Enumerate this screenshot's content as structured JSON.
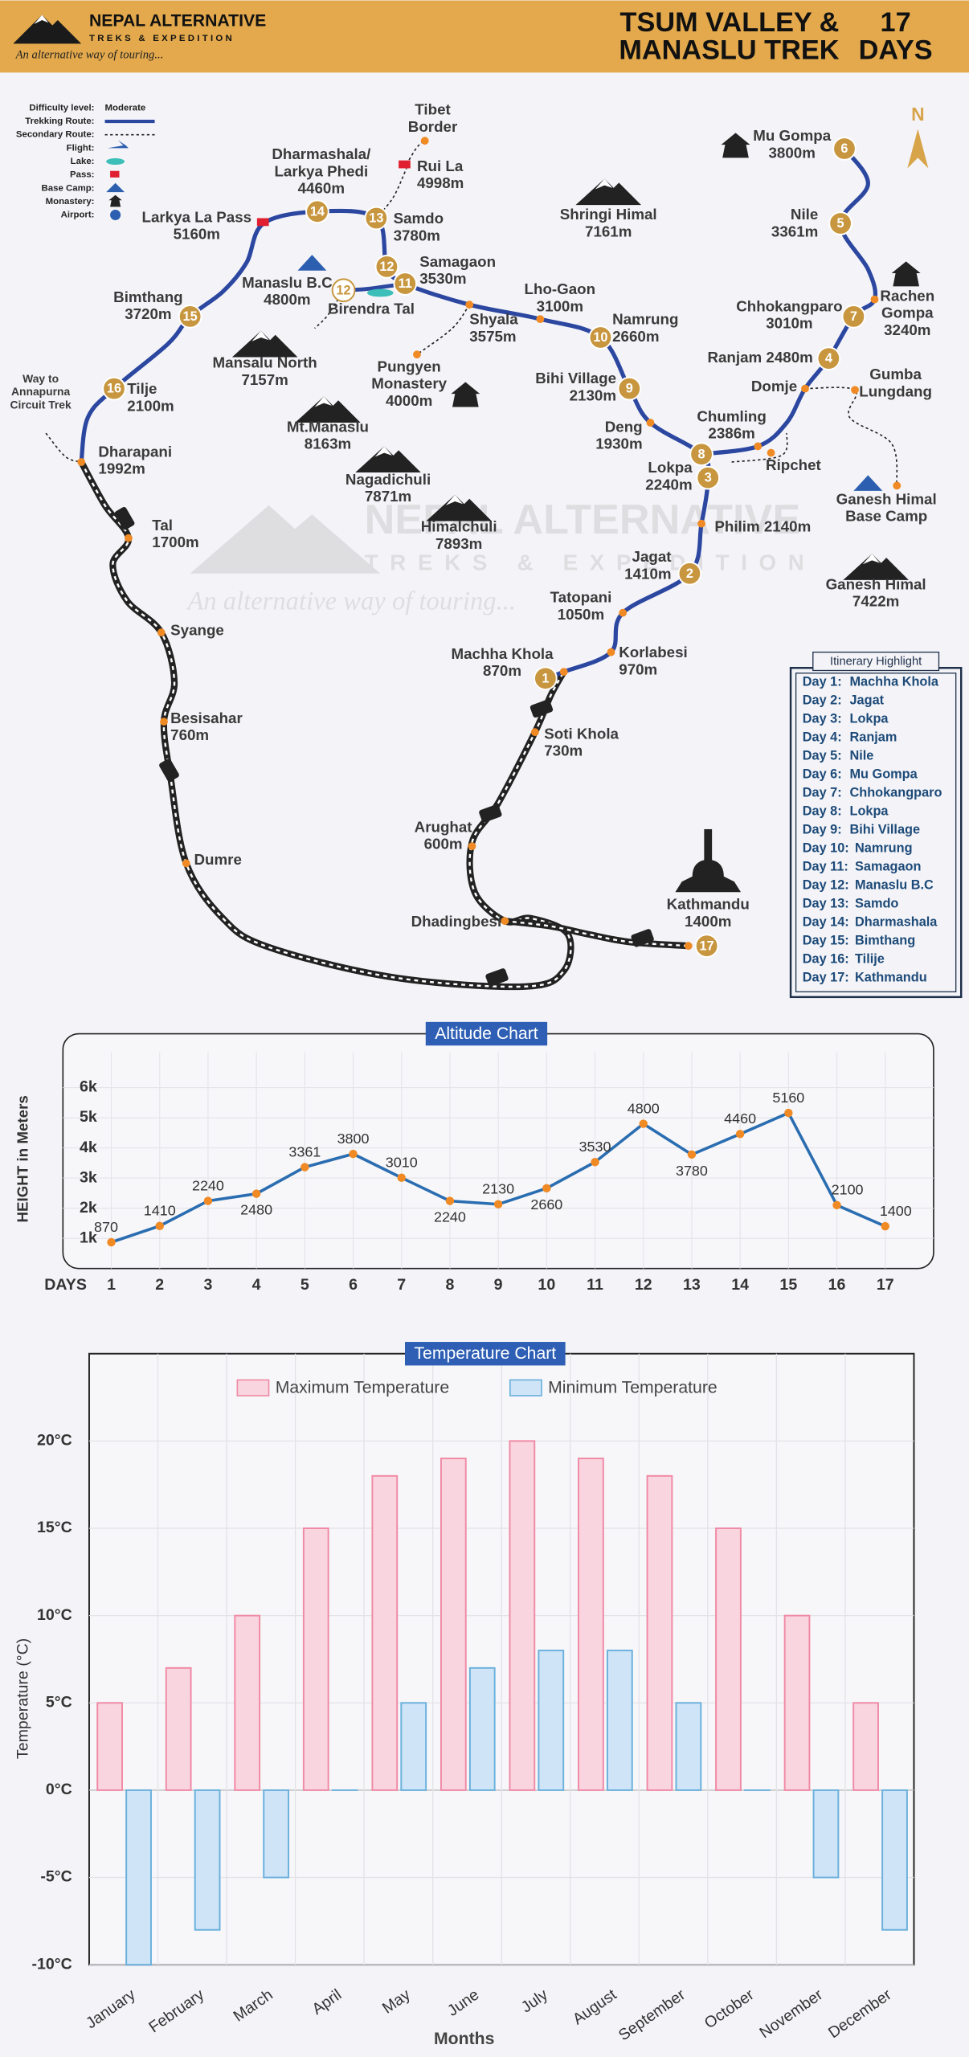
{
  "header": {
    "brand": "NEPAL ALTERNATIVE",
    "sub": "TREKS & EXPEDITION",
    "tagline": "An alternative way of touring...",
    "title_lines": [
      "TSUM VALLEY &",
      "MANASLU TREK"
    ],
    "days_lines": [
      "17",
      "DAYS"
    ]
  },
  "legend": [
    {
      "label": "Difficulty level:",
      "value": "Moderate"
    },
    {
      "label": "Trekking Route:"
    },
    {
      "label": "Secondary Route:"
    },
    {
      "label": "Flight:"
    },
    {
      "label": "Lake:"
    },
    {
      "label": "Pass:"
    },
    {
      "label": "Base Camp:"
    },
    {
      "label": "Monastery:"
    },
    {
      "label": "Airport:"
    }
  ],
  "map": {
    "compass": "N",
    "stops": [
      "1",
      "2",
      "3",
      "4",
      "5",
      "6",
      "7",
      "8",
      "9",
      "10",
      "11",
      "12",
      "13",
      "14",
      "15",
      "16",
      "17",
      "12"
    ],
    "places": [
      {
        "lines": [
          "Tibet",
          "Border"
        ]
      },
      {
        "lines": [
          "Rui La",
          "4998m"
        ]
      },
      {
        "lines": [
          "Dharmashala/",
          "Larkya Phedi",
          "4460m"
        ]
      },
      {
        "lines": [
          "Larkya La Pass",
          "5160m"
        ]
      },
      {
        "lines": [
          "Samdo",
          "3780m"
        ]
      },
      {
        "lines": [
          "Samagaon",
          "3530m"
        ]
      },
      {
        "lines": [
          "Manaslu B.C",
          "4800m"
        ]
      },
      {
        "lines": [
          "Birendra Tal"
        ]
      },
      {
        "lines": [
          "Bimthang",
          "3720m"
        ]
      },
      {
        "lines": [
          "Mansalu North",
          "7157m"
        ]
      },
      {
        "lines": [
          "Tilje",
          "2100m"
        ]
      },
      {
        "lines": [
          "Way to",
          "Annapurna",
          "Circuit Trek"
        ]
      },
      {
        "lines": [
          "Dharapani",
          "1992m"
        ]
      },
      {
        "lines": [
          "Mt.Manaslu",
          "8163m"
        ]
      },
      {
        "lines": [
          "Nagadichuli",
          "7871m"
        ]
      },
      {
        "lines": [
          "Himalchuli",
          "7893m"
        ]
      },
      {
        "lines": [
          "Tal",
          "1700m"
        ]
      },
      {
        "lines": [
          "Syange"
        ]
      },
      {
        "lines": [
          "Besisahar",
          "760m"
        ]
      },
      {
        "lines": [
          "Dumre"
        ]
      },
      {
        "lines": [
          "Shringi Himal",
          "7161m"
        ]
      },
      {
        "lines": [
          "Lho-Gaon",
          "3100m"
        ]
      },
      {
        "lines": [
          "Shyala",
          "3575m"
        ]
      },
      {
        "lines": [
          "Pungyen",
          "Monastery",
          "4000m"
        ]
      },
      {
        "lines": [
          "Namrung",
          "2660m"
        ]
      },
      {
        "lines": [
          "Bihi Village",
          "2130m"
        ]
      },
      {
        "lines": [
          "Deng",
          "1930m"
        ]
      },
      {
        "lines": [
          "Lokpa",
          "2240m"
        ]
      },
      {
        "lines": [
          "Chumling",
          "2386m"
        ]
      },
      {
        "lines": [
          "Ripchet"
        ]
      },
      {
        "lines": [
          "Domje"
        ]
      },
      {
        "lines": [
          "Gumba",
          "Lungdang"
        ]
      },
      {
        "lines": [
          "Ranjam 2480m"
        ]
      },
      {
        "lines": [
          "Chhokangparo",
          "3010m"
        ]
      },
      {
        "lines": [
          "Rachen",
          "Gompa",
          "3240m"
        ]
      },
      {
        "lines": [
          "Nile",
          "3361m"
        ]
      },
      {
        "lines": [
          "Mu Gompa",
          "3800m"
        ]
      },
      {
        "lines": [
          "Philim 2140m"
        ]
      },
      {
        "lines": [
          "Jagat",
          "1410m"
        ]
      },
      {
        "lines": [
          "Tatopani",
          "1050m"
        ]
      },
      {
        "lines": [
          "Korlabesi",
          "970m"
        ]
      },
      {
        "lines": [
          "Machha Khola",
          "870m"
        ]
      },
      {
        "lines": [
          "Soti Khola",
          "730m"
        ]
      },
      {
        "lines": [
          "Arughat",
          "600m"
        ]
      },
      {
        "lines": [
          "Dhadingbesi"
        ]
      },
      {
        "lines": [
          "Kathmandu",
          "1400m"
        ]
      },
      {
        "lines": [
          "Ganesh Himal",
          "Base Camp"
        ]
      },
      {
        "lines": [
          "Ganesh Himal",
          "7422m"
        ]
      }
    ]
  },
  "itinerary": {
    "title": "Itinerary Highlight",
    "rows": [
      [
        "Day 1:",
        "Machha Khola"
      ],
      [
        "Day 2:",
        "Jagat"
      ],
      [
        "Day 3:",
        "Lokpa"
      ],
      [
        "Day 4:",
        "Ranjam"
      ],
      [
        "Day 5:",
        "Nile"
      ],
      [
        "Day 6:",
        "Mu Gompa"
      ],
      [
        "Day 7:",
        "Chhokangparo"
      ],
      [
        "Day 8:",
        "Lokpa"
      ],
      [
        "Day 9:",
        "Bihi Village"
      ],
      [
        "Day 10:",
        "Namrung"
      ],
      [
        "Day 11:",
        "Samagaon"
      ],
      [
        "Day 12:",
        "Manaslu B.C"
      ],
      [
        "Day 13:",
        "Samdo"
      ],
      [
        "Day 14:",
        "Dharmashala"
      ],
      [
        "Day 15:",
        "Bimthang"
      ],
      [
        "Day 16:",
        "Tilije"
      ],
      [
        "Day 17:",
        "Kathmandu"
      ]
    ]
  },
  "chart_data": [
    {
      "type": "line",
      "title": "Altitude Chart",
      "y_label": "HEIGHT in Meters",
      "x_label": "DAYS",
      "x": [
        1,
        2,
        3,
        4,
        5,
        6,
        7,
        8,
        9,
        10,
        11,
        12,
        13,
        14,
        15,
        16,
        17
      ],
      "values": [
        870,
        1410,
        2240,
        2480,
        3361,
        3800,
        3010,
        2240,
        2130,
        2660,
        3530,
        4800,
        3780,
        4460,
        5160,
        2100,
        1400
      ],
      "color": "#2a6db0",
      "marker_color": "#f08a24",
      "xlim": [
        0,
        18
      ],
      "xticks": [
        1,
        2,
        3,
        4,
        5,
        6,
        7,
        8,
        9,
        10,
        11,
        12,
        13,
        14,
        15,
        16,
        17
      ],
      "ylim": [
        0,
        7700
      ],
      "yticks": [
        {
          "value": 1000,
          "label": "1k"
        },
        {
          "value": 2000,
          "label": "2k"
        },
        {
          "value": 3000,
          "label": "3k"
        },
        {
          "value": 4000,
          "label": "4k"
        },
        {
          "value": 5000,
          "label": "5k"
        },
        {
          "value": 6000,
          "label": "6k"
        }
      ],
      "grid": true
    },
    {
      "type": "bar",
      "title": "Temperature Chart",
      "y_label": "Temperature (°C)",
      "x_label": "Months",
      "categories": [
        "January",
        "February",
        "March",
        "April",
        "May",
        "June",
        "July",
        "August",
        "September",
        "October",
        "November",
        "December"
      ],
      "series": [
        {
          "name": "Maximum Temperature",
          "color": "#f9d5df",
          "stroke": "#f08aa5",
          "values": [
            5,
            7,
            10,
            15,
            18,
            19,
            20,
            19,
            18,
            15,
            10,
            5
          ]
        },
        {
          "name": "Minimum Temperature",
          "color": "#cfe4f7",
          "stroke": "#6ab0dc",
          "values": [
            -10,
            -8,
            -5,
            0,
            5,
            7,
            8,
            8,
            5,
            0,
            -5,
            -8
          ]
        }
      ],
      "ylim": [
        -10,
        25
      ],
      "yticks": [
        {
          "value": -10,
          "label": "-10°C"
        },
        {
          "value": -5,
          "label": "-5°C"
        },
        {
          "value": 0,
          "label": "0°C"
        },
        {
          "value": 5,
          "label": "5°C"
        },
        {
          "value": 10,
          "label": "10°C"
        },
        {
          "value": 15,
          "label": "15°C"
        },
        {
          "value": 20,
          "label": "20°C"
        }
      ],
      "grid": true,
      "legend": "top"
    }
  ]
}
